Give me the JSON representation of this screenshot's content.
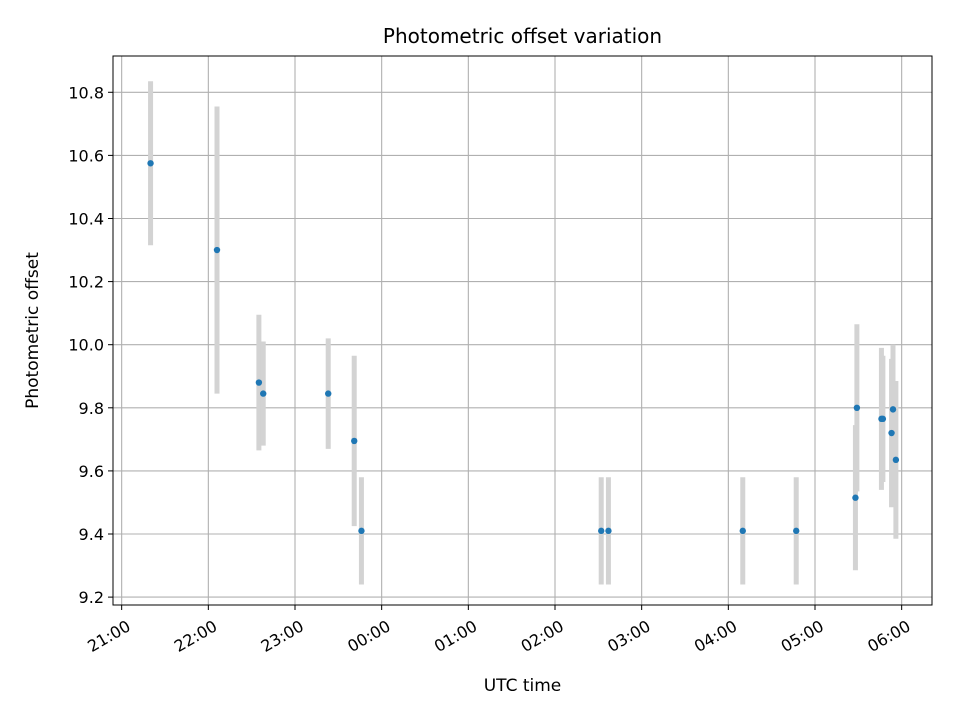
{
  "chart_data": {
    "type": "scatter",
    "title": "Photometric offset variation",
    "xlabel": "UTC time",
    "ylabel": "Photometric offset",
    "x_is_time": true,
    "x_tick_labels": [
      "21:00",
      "22:00",
      "23:00",
      "00:00",
      "01:00",
      "02:00",
      "03:00",
      "04:00",
      "05:00",
      "06:00"
    ],
    "xlim": [
      "20:54",
      "06:21"
    ],
    "ylim": [
      9.175,
      10.915
    ],
    "y_ticks": [
      9.2,
      9.4,
      9.6,
      9.8,
      10.0,
      10.2,
      10.4,
      10.6,
      10.8
    ],
    "y_tick_labels": [
      "9.2",
      "9.4",
      "9.6",
      "9.8",
      "10.0",
      "10.2",
      "10.4",
      "10.6",
      "10.8"
    ],
    "grid": true,
    "marker_color": "#1f77b4",
    "errorbar_color": "#d3d3d3",
    "points": [
      {
        "time": "21:20",
        "y": 10.575,
        "err": 0.26
      },
      {
        "time": "22:06",
        "y": 10.3,
        "err": 0.455
      },
      {
        "time": "22:35",
        "y": 9.88,
        "err": 0.215
      },
      {
        "time": "22:38",
        "y": 9.845,
        "err": 0.165
      },
      {
        "time": "23:23",
        "y": 9.845,
        "err": 0.175
      },
      {
        "time": "23:41",
        "y": 9.695,
        "err": 0.27
      },
      {
        "time": "23:46",
        "y": 9.41,
        "err": 0.17
      },
      {
        "time": "02:32",
        "y": 9.41,
        "err": 0.17
      },
      {
        "time": "02:37",
        "y": 9.41,
        "err": 0.17
      },
      {
        "time": "04:10",
        "y": 9.41,
        "err": 0.17
      },
      {
        "time": "04:47",
        "y": 9.41,
        "err": 0.17
      },
      {
        "time": "05:28",
        "y": 9.515,
        "err": 0.23
      },
      {
        "time": "05:29",
        "y": 9.8,
        "err": 0.265
      },
      {
        "time": "05:46",
        "y": 9.765,
        "err": 0.225
      },
      {
        "time": "05:47",
        "y": 9.765,
        "err": 0.2
      },
      {
        "time": "05:53",
        "y": 9.72,
        "err": 0.235
      },
      {
        "time": "05:54",
        "y": 9.795,
        "err": 0.205
      },
      {
        "time": "05:56",
        "y": 9.635,
        "err": 0.25
      }
    ]
  }
}
